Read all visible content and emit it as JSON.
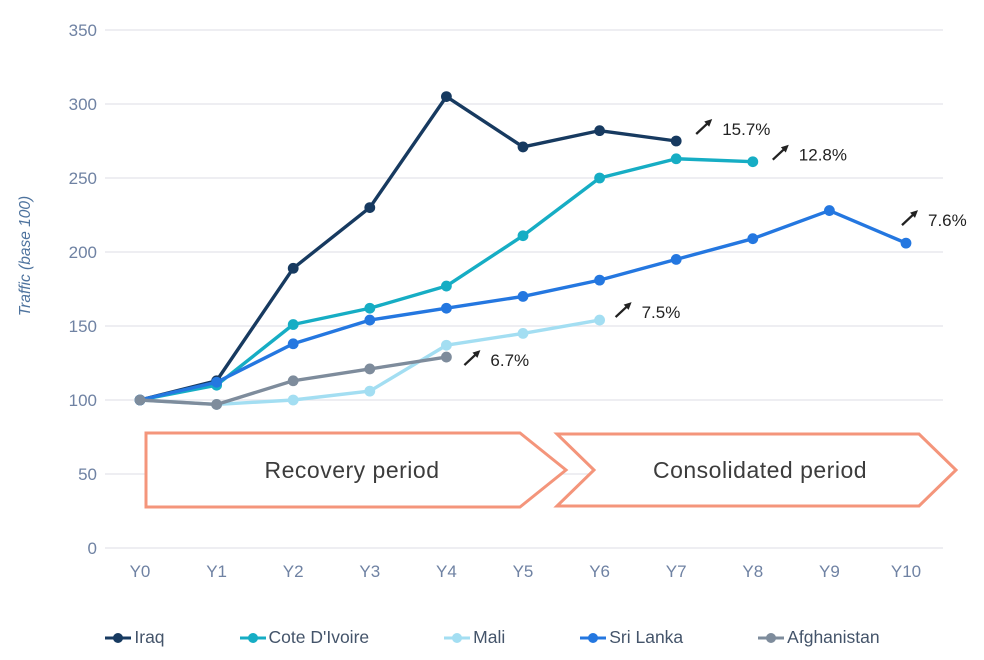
{
  "chart_data": {
    "type": "line",
    "title": "",
    "xlabel": "",
    "ylabel": "Traffic (base 100)",
    "categories": [
      "Y0",
      "Y1",
      "Y2",
      "Y3",
      "Y4",
      "Y5",
      "Y6",
      "Y7",
      "Y8",
      "Y9",
      "Y10"
    ],
    "y_ticks": [
      0,
      50,
      100,
      150,
      200,
      250,
      300,
      350
    ],
    "ylim": [
      0,
      350
    ],
    "grid": "horizontal",
    "legend_position": "bottom",
    "annotation_arrow_glyph": "↗",
    "series": [
      {
        "name": "Iraq",
        "color": "#173A60",
        "values": [
          100,
          113,
          189,
          230,
          305,
          271,
          282,
          275
        ],
        "annotation": "15.7%",
        "label_offset": [
          46,
          -6
        ]
      },
      {
        "name": "Cote D'Ivoire",
        "color": "#16ADC4",
        "values": [
          100,
          110,
          151,
          162,
          177,
          211,
          250,
          263,
          261
        ],
        "annotation": "12.8%",
        "label_offset": [
          46,
          -1
        ]
      },
      {
        "name": "Mali",
        "color": "#A3DEF2",
        "values": [
          100,
          97,
          100,
          106,
          137,
          145,
          154
        ],
        "annotation": "7.5%",
        "label_offset": [
          42,
          -2
        ]
      },
      {
        "name": "Sri Lanka",
        "color": "#2477E0",
        "values": [
          100,
          112,
          138,
          154,
          162,
          170,
          181,
          195,
          209,
          228,
          206
        ],
        "annotation": "7.6%",
        "label_offset": [
          22,
          -17
        ]
      },
      {
        "name": "Afghanistan",
        "color": "#7E8C9C",
        "values": [
          100,
          97,
          113,
          121,
          129
        ],
        "annotation": "6.7%",
        "label_offset": [
          44,
          9
        ]
      }
    ]
  },
  "banners": {
    "border_color": "#F4957B",
    "recovery": {
      "label": "Recovery period"
    },
    "consolidated": {
      "label": "Consolidated period"
    }
  }
}
